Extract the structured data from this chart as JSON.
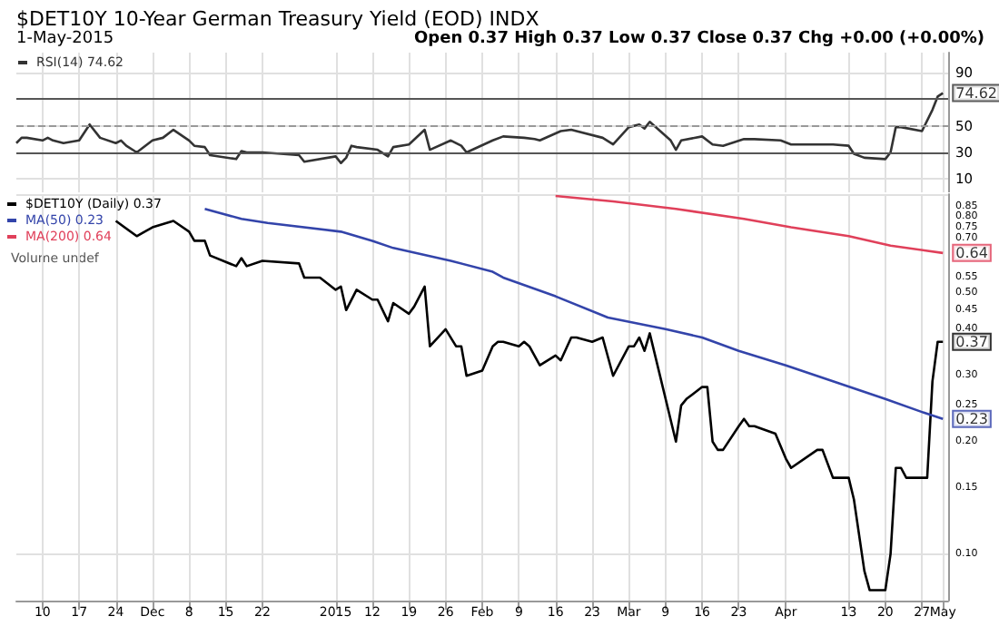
{
  "chart_data": [
    {
      "type": "line",
      "title": "$DET10Y 10-Year German Treasury Yield (EOD) INDX",
      "subtitle": "1-May-2015",
      "annotations": [
        "Open 0.37 High 0.37 Low 0.37 Close 0.37 Chg +0.00 (+0.00%)",
        {
          "text": "74.62",
          "x": "2015-05-01",
          "y": 74.62
        }
      ],
      "series": [
        {
          "name": "RSI(14) 74.62",
          "color": "#333333",
          "x": [
            "2014-11-05",
            "2014-11-06",
            "2014-11-07",
            "2014-11-10",
            "2014-11-11",
            "2014-11-12",
            "2014-11-14",
            "2014-11-17",
            "2014-11-19",
            "2014-11-21",
            "2014-11-24",
            "2014-11-25",
            "2014-11-26",
            "2014-11-28",
            "2014-12-01",
            "2014-12-03",
            "2014-12-05",
            "2014-12-08",
            "2014-12-09",
            "2014-12-11",
            "2014-12-12",
            "2014-12-17",
            "2014-12-18",
            "2014-12-19",
            "2014-12-22",
            "2014-12-29",
            "2014-12-30",
            "2015-01-05",
            "2015-01-06",
            "2015-01-07",
            "2015-01-08",
            "2015-01-09",
            "2015-01-13",
            "2015-01-15",
            "2015-01-16",
            "2015-01-19",
            "2015-01-22",
            "2015-01-23",
            "2015-01-27",
            "2015-01-29",
            "2015-01-30",
            "2015-02-04",
            "2015-02-06",
            "2015-02-10",
            "2015-02-12",
            "2015-02-13",
            "2015-02-17",
            "2015-02-19",
            "2015-02-20",
            "2015-02-25",
            "2015-02-27",
            "2015-03-02",
            "2015-03-04",
            "2015-03-05",
            "2015-03-06",
            "2015-03-10",
            "2015-03-11",
            "2015-03-12",
            "2015-03-16",
            "2015-03-18",
            "2015-03-20",
            "2015-03-24",
            "2015-03-26",
            "2015-03-31",
            "2015-04-02",
            "2015-04-08",
            "2015-04-10",
            "2015-04-13",
            "2015-04-14",
            "2015-04-16",
            "2015-04-20",
            "2015-04-21",
            "2015-04-22",
            "2015-04-23",
            "2015-04-27",
            "2015-04-29",
            "2015-04-30",
            "2015-05-01"
          ],
          "values": [
            37,
            41,
            41,
            39,
            41,
            39,
            37,
            39,
            51,
            41,
            37,
            39,
            35,
            30,
            39,
            41,
            47,
            39,
            35,
            34,
            28,
            25,
            31,
            30,
            30,
            28,
            23,
            27,
            22,
            26,
            35,
            34,
            32,
            27,
            34,
            36,
            47,
            32,
            39,
            35,
            30,
            39,
            42,
            41,
            40,
            39,
            46,
            47,
            46,
            41,
            36,
            49,
            51,
            48,
            53,
            39,
            32,
            39,
            42,
            36,
            35,
            40,
            40,
            39,
            36,
            36,
            36,
            35,
            29,
            26,
            25,
            30,
            49,
            49,
            46,
            62,
            72,
            74.62
          ]
        }
      ],
      "xlim": [
        "2014-11-05",
        "2015-05-02"
      ],
      "xticks": [
        {
          "value": "2014-11-10",
          "label": null
        },
        {
          "value": "2014-11-17",
          "label": null
        },
        {
          "value": "2014-11-24",
          "label": null
        },
        {
          "value": "2014-12-01",
          "label": null
        },
        {
          "value": "2014-12-08",
          "label": null
        },
        {
          "value": "2014-12-15",
          "label": null
        },
        {
          "value": "2014-12-22",
          "label": null
        },
        {
          "value": "2015-01-05",
          "label": null
        },
        {
          "value": "2015-01-12",
          "label": null
        },
        {
          "value": "2015-01-19",
          "label": null
        },
        {
          "value": "2015-01-26",
          "label": null
        },
        {
          "value": "2015-02-02",
          "label": null
        },
        {
          "value": "2015-02-09",
          "label": null
        },
        {
          "value": "2015-02-16",
          "label": null
        },
        {
          "value": "2015-02-23",
          "label": null
        },
        {
          "value": "2015-03-02",
          "label": null
        },
        {
          "value": "2015-03-09",
          "label": null
        },
        {
          "value": "2015-03-16",
          "label": null
        },
        {
          "value": "2015-03-23",
          "label": null
        },
        {
          "value": "2015-04-01",
          "label": null
        },
        {
          "value": "2015-04-13",
          "label": null
        },
        {
          "value": "2015-04-20",
          "label": null
        },
        {
          "value": "2015-04-27",
          "label": null
        },
        {
          "value": "2015-05-01",
          "label": null
        }
      ],
      "ylim": [
        0,
        105
      ],
      "yticks": [
        10,
        30,
        50,
        90
      ],
      "ref_lines": [
        {
          "axis": "y",
          "value": 70,
          "color": "#555555",
          "line_style": "solid"
        },
        {
          "axis": "y",
          "value": 50,
          "color": "#999999",
          "line_style": "dashed"
        },
        {
          "axis": "y",
          "value": 30,
          "color": "#555555",
          "line_style": "solid"
        }
      ],
      "tick_labels": "y",
      "grid": true,
      "legend": "top left",
      "marker": "none"
    },
    {
      "type": "line",
      "annotations": [
        "Volume undef",
        {
          "text": "0.37",
          "x": "2015-05-01",
          "y": 0.37
        },
        {
          "text": "0.64",
          "x": "2015-05-01",
          "y": 0.64
        },
        {
          "text": "0.23",
          "x": "2015-05-01",
          "y": 0.23
        }
      ],
      "series": [
        {
          "name": "$DET10Y (Daily) 0.37",
          "color": "#000000",
          "x": [
            "2014-11-24",
            "2014-11-28",
            "2014-12-01",
            "2014-12-05",
            "2014-12-08",
            "2014-12-09",
            "2014-12-11",
            "2014-12-12",
            "2014-12-17",
            "2014-12-18",
            "2014-12-19",
            "2014-12-22",
            "2014-12-29",
            "2014-12-30",
            "2015-01-02",
            "2015-01-05",
            "2015-01-06",
            "2015-01-07",
            "2015-01-09",
            "2015-01-12",
            "2015-01-13",
            "2015-01-15",
            "2015-01-16",
            "2015-01-19",
            "2015-01-20",
            "2015-01-22",
            "2015-01-23",
            "2015-01-26",
            "2015-01-28",
            "2015-01-29",
            "2015-01-30",
            "2015-02-02",
            "2015-02-04",
            "2015-02-05",
            "2015-02-06",
            "2015-02-09",
            "2015-02-10",
            "2015-02-11",
            "2015-02-13",
            "2015-02-16",
            "2015-02-17",
            "2015-02-19",
            "2015-02-20",
            "2015-02-23",
            "2015-02-25",
            "2015-02-27",
            "2015-03-02",
            "2015-03-03",
            "2015-03-04",
            "2015-03-05",
            "2015-03-06",
            "2015-03-11",
            "2015-03-12",
            "2015-03-13",
            "2015-03-16",
            "2015-03-17",
            "2015-03-18",
            "2015-03-19",
            "2015-03-20",
            "2015-03-23",
            "2015-03-24",
            "2015-03-25",
            "2015-03-26",
            "2015-03-30",
            "2015-04-01",
            "2015-04-02",
            "2015-04-07",
            "2015-04-08",
            "2015-04-10",
            "2015-04-13",
            "2015-04-14",
            "2015-04-16",
            "2015-04-17",
            "2015-04-20",
            "2015-04-21",
            "2015-04-22",
            "2015-04-23",
            "2015-04-24",
            "2015-04-28",
            "2015-04-29",
            "2015-04-30",
            "2015-05-01"
          ],
          "values": [
            0.78,
            0.71,
            0.75,
            0.78,
            0.73,
            0.69,
            0.69,
            0.63,
            0.59,
            0.62,
            0.59,
            0.61,
            0.6,
            0.55,
            0.55,
            0.51,
            0.52,
            0.45,
            0.51,
            0.48,
            0.48,
            0.42,
            0.47,
            0.44,
            0.46,
            0.52,
            0.36,
            0.4,
            0.36,
            0.36,
            0.3,
            0.31,
            0.36,
            0.37,
            0.37,
            0.36,
            0.37,
            0.36,
            0.32,
            0.34,
            0.33,
            0.38,
            0.38,
            0.37,
            0.38,
            0.3,
            0.36,
            0.36,
            0.38,
            0.35,
            0.39,
            0.2,
            0.25,
            0.26,
            0.28,
            0.28,
            0.2,
            0.19,
            0.19,
            0.22,
            0.23,
            0.22,
            0.22,
            0.21,
            0.18,
            0.17,
            0.19,
            0.19,
            0.16,
            0.16,
            0.14,
            0.09,
            0.08,
            0.08,
            0.1,
            0.17,
            0.17,
            0.16,
            0.16,
            0.29,
            0.37,
            0.37
          ]
        },
        {
          "name": "MA(50) 0.23",
          "color": "#3344aa",
          "x": [
            "2014-12-11",
            "2014-12-18",
            "2014-12-23",
            "2015-01-06",
            "2015-01-12",
            "2015-01-16",
            "2015-01-27",
            "2015-02-04",
            "2015-02-06",
            "2015-02-16",
            "2015-02-26",
            "2015-03-09",
            "2015-03-16",
            "2015-03-23",
            "2015-04-01",
            "2015-04-10",
            "2015-04-20",
            "2015-04-27",
            "2015-05-01"
          ],
          "values": [
            0.84,
            0.79,
            0.77,
            0.73,
            0.69,
            0.66,
            0.61,
            0.57,
            0.55,
            0.49,
            0.43,
            0.4,
            0.38,
            0.35,
            0.32,
            0.29,
            0.26,
            0.24,
            0.23
          ]
        },
        {
          "name": "MA(200) 0.64",
          "color": "#e0405a",
          "x": [
            "2015-02-16",
            "2015-02-27",
            "2015-03-11",
            "2015-03-24",
            "2015-04-02",
            "2015-04-13",
            "2015-04-21",
            "2015-05-01"
          ],
          "values": [
            0.91,
            0.88,
            0.84,
            0.79,
            0.75,
            0.71,
            0.67,
            0.64
          ]
        }
      ],
      "xlim": [
        "2014-11-05",
        "2015-05-02"
      ],
      "xticks": [
        {
          "value": "2014-11-10",
          "label": "10"
        },
        {
          "value": "2014-11-17",
          "label": "17"
        },
        {
          "value": "2014-11-24",
          "label": "24"
        },
        {
          "value": "2014-12-01",
          "label": "Dec"
        },
        {
          "value": "2014-12-08",
          "label": "8"
        },
        {
          "value": "2014-12-15",
          "label": "15"
        },
        {
          "value": "2014-12-22",
          "label": "22"
        },
        {
          "value": "2015-01-05",
          "label": "2015"
        },
        {
          "value": "2015-01-12",
          "label": "12"
        },
        {
          "value": "2015-01-19",
          "label": "19"
        },
        {
          "value": "2015-01-26",
          "label": "26"
        },
        {
          "value": "2015-02-02",
          "label": "Feb"
        },
        {
          "value": "2015-02-09",
          "label": "9"
        },
        {
          "value": "2015-02-16",
          "label": "16"
        },
        {
          "value": "2015-02-23",
          "label": "23"
        },
        {
          "value": "2015-03-02",
          "label": "Mar"
        },
        {
          "value": "2015-03-09",
          "label": "9"
        },
        {
          "value": "2015-03-16",
          "label": "16"
        },
        {
          "value": "2015-03-23",
          "label": "23"
        },
        {
          "value": "2015-04-01",
          "label": "Apr"
        },
        {
          "value": "2015-04-13",
          "label": "13"
        },
        {
          "value": "2015-04-20",
          "label": "20"
        },
        {
          "value": "2015-04-27",
          "label": "27"
        },
        {
          "value": "2015-05-01",
          "label": "May"
        }
      ],
      "ylim": [
        0.075,
        0.92
      ],
      "yticks": [
        {
          "value": 0.1,
          "label": "0.10"
        },
        {
          "value": 0.15,
          "label": "0.15"
        },
        {
          "value": 0.2,
          "label": "0.20"
        },
        {
          "value": 0.25,
          "label": "0.25"
        },
        {
          "value": 0.3,
          "label": "0.30"
        },
        {
          "value": 0.4,
          "label": "0.40"
        },
        {
          "value": 0.45,
          "label": "0.45"
        },
        {
          "value": 0.5,
          "label": "0.50"
        },
        {
          "value": 0.55,
          "label": "0.55"
        },
        {
          "value": 0.7,
          "label": "0.70"
        },
        {
          "value": 0.75,
          "label": "0.75"
        },
        {
          "value": 0.8,
          "label": "0.80"
        },
        {
          "value": 0.85,
          "label": "0.85"
        }
      ],
      "log": "y",
      "grid": true,
      "legend": "top left",
      "marker": "none"
    }
  ]
}
